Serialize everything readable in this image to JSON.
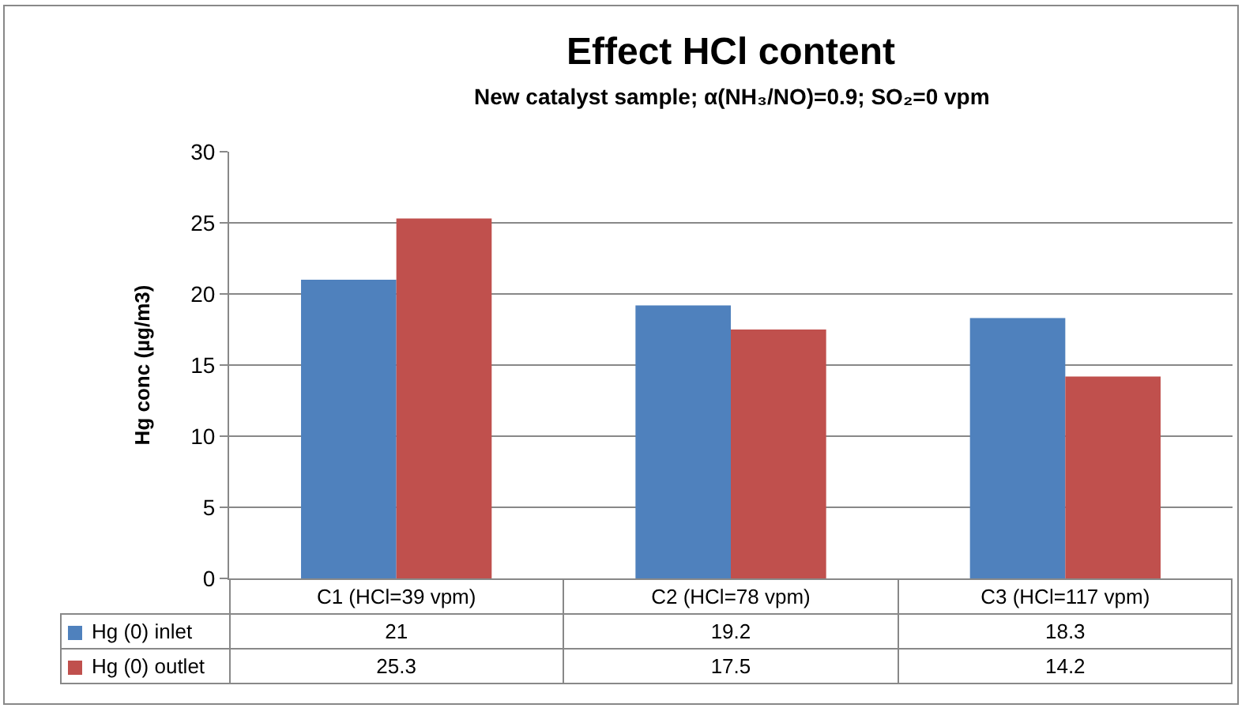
{
  "chart_data": {
    "type": "bar",
    "title": "Effect HCl content",
    "subtitle": "New catalyst sample; α(NH₃/NO)=0.9; SO₂=0 vpm",
    "ylabel": "Hg conc (µg/m3)",
    "categories": [
      "C1 (HCl=39 vpm)",
      "C2 (HCl=78 vpm)",
      "C3 (HCl=117 vpm)"
    ],
    "series": [
      {
        "name": "Hg (0) inlet",
        "color": "#4f81bd",
        "values": [
          21,
          19.2,
          18.3
        ]
      },
      {
        "name": "Hg (0) outlet",
        "color": "#c0504d",
        "values": [
          25.3,
          17.5,
          14.2
        ]
      }
    ],
    "ylim": [
      0,
      30
    ],
    "yticks": [
      0,
      5,
      10,
      15,
      20,
      25,
      30
    ],
    "grid": "y",
    "legend": "bottom",
    "data_labels": true
  }
}
